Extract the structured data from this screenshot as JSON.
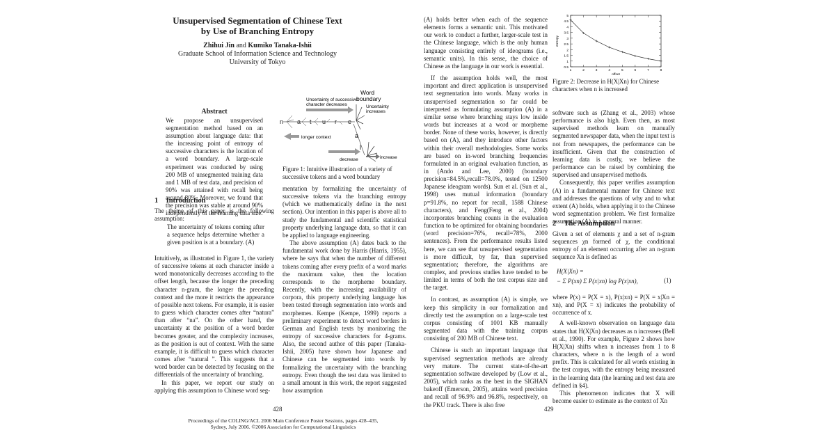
{
  "left": {
    "title": [
      "Unsupervised Segmentation of Chinese Text",
      "by Use of Branching Entropy"
    ],
    "author1": "Zhihui Jin",
    "and": "and",
    "author2": "Kumiko Tanaka-Ishii",
    "affiliation1": "Graduate School of Information Science and Technology",
    "affiliation2": "University of Tokyo",
    "abstract_title": "Abstract",
    "abstract_text": "We propose an unsupervised segmentation method based on an assumption about language data: that the increasing point of entropy of successive characters is the location of a word boundary. A large-scale experiment was conducted by using 200 MB of unsegmented training data and 1 MB of test data, and precision of 90% was attained with recall being around 80%. Moreover, we found that the precision was stable at around 90% independently of the learning data size.",
    "figure1": {
      "label_uncertainty_decreases": [
        "Uncertainty of successive",
        "character decreases"
      ],
      "label_word": "Word",
      "label_boundary": "boundary",
      "label_uncertainty_increases": [
        "Uncertainty",
        "increases"
      ],
      "chars": [
        "n",
        "a",
        "t",
        "u",
        "r",
        "e"
      ],
      "branch_chars": [
        "a",
        "l"
      ],
      "label_longer_context": "longer context",
      "label_decrease": "decrease",
      "label_increase": "increase",
      "caption": "Figure 1: Intuitive illustration of a variety of successive tokens and a word boundary"
    },
    "section1_num": "1",
    "section1_title": "Introduction",
    "intro_p1": "The theme of this paper is the following assumption:",
    "quote": "The uncertainty of tokens coming after a sequence helps determine whether a given position is at a boundary. (A)",
    "intro_p2": "Intuitively, as illustrated in Figure 1, the variety of successive tokens at each character inside a word monotonically decreases according to the offset length, because the longer the preceding character n-gram, the longer the preceding context and the more it restricts the appearance of possible next tokens. For example, it is easier to guess which character comes after “natura” than after “na”. On the other hand, the uncertainty at the position of a word border becomes greater, and the complexity increases, as the position is out of context. With the same example, it is difficult to guess which character comes after “natural ”. This suggests that a word border can be detected by focusing on the differentials of the uncertainty of branching.",
    "intro_p3": "In this paper, we report our study on applying this assumption to Chinese word seg-",
    "col2_p1": "mentation by formalizing the uncertainty of successive tokens via the branching entropy (which we mathematically define in the next section). Our intention in this paper is above all to study the fundamental and scientific statistical property underlying language data, so that it can be applied to language engineering.",
    "col2_p2": "The above assumption (A) dates back to the fundamental work done by Harris (Harris, 1955), where he says that when the number of different tokens coming after every prefix of a word marks the maximum value, then the location corresponds to the morpheme boundary. Recently, with the increasing availability of corpora, this property underlying language has been tested through segmentation into words and morphemes. Kempe (Kempe, 1999) reports a preliminary experiment to detect word borders in German and English texts by monitoring the entropy of successive characters for 4-grams. Also, the second author of this paper (Tanaka-Ishii, 2005) have shown how Japanese and Chinese can be segmented into words by formalizing the uncertainty with the branching entropy. Even though the test data was limited to a small amount in this work, the report suggested how assumption",
    "page_number": "428",
    "footer1": "Proceedings of the COLING/ACL 2006 Main Conference Poster Sessions, pages 428–435,",
    "footer2": "Sydney, July 2006. ©2006 Association for Computational Linguistics"
  },
  "right": {
    "col1_p1": "(A) holds better when each of the sequence elements forms a semantic unit. This motivated our work to conduct a further, larger-scale test in the Chinese language, which is the only human language consisting entirely of ideograms (i.e., semantic units). In this sense, the choice of Chinese as the language in our work is essential.",
    "col1_p2": "If the assumption holds well, the most important and direct application is unsupervised text segmentation into words. Many works in unsupervised segmentation so far could be interpreted as formulating assumption (A) in a similar sense where branching stays low inside words but increases at a word or morpheme border. None of these works, however, is directly based on (A), and they introduce other factors within their overall methodologies. Some works are based on in-word branching frequencies formulated in an original evaluation function, as in (Ando and Lee, 2000) (boundary precision=84.5%,recall=78.0%, tested on 12500 Japanese ideogram words). Sun et al. (Sun et al., 1998) uses mutual information (boundary p=91.8%, no report for recall, 1588 Chinese characters), and Feng(Feng et al., 2004) incorporates branching counts in the evaluation function to be optimized for obtaining boundaries (word precision=76%, recall=78%, 2000 sentences). From the performance results listed here, we can see that unsupervised segmentation is more difficult, by far, than supervised segmentation; therefore, the algorithms are complex, and previous studies have tended to be limited in terms of both the test corpus size and the target.",
    "col1_p3": "In contrast, as assumption (A) is simple, we keep this simplicity in our formalization and directly test the assumption on a large-scale test corpus consisting of 1001 KB manually segmented data with the training corpus consisting of 200 MB of Chinese text.",
    "col1_p4": "Chinese is such an important language that supervised segmentation methods are already very mature. The current state-of-the-art segmentation software developed by (Low et al., 2005), which ranks as the best in the SIGHAN bakeoff (Emerson, 2005), attains word precision and recall of 96.9% and 96.8%, respectively, on the PKU track. There is also free",
    "figure2_caption": "Figure 2: Decrease in H(X|Xn) for Chinese characters when n is increased",
    "col2_p1": "software such as (Zhang et al., 2003) whose performance is also high. Even then, as most supervised methods learn on manually segmented newspaper data, when the input text is not from newspapers, the performance can be insufficient. Given that the construction of learning data is costly, we believe the performance can be raised by combining the supervised and unsupervised methods.",
    "col2_p2": "Consequently, this paper verifies assumption (A) in a fundamental manner for Chinese text and addresses the questions of why and to what extent (A) holds, when applying it to the Chinese word segmentation problem. We first formalize assumption (A) in a general manner.",
    "section2_num": "2",
    "section2_title": "The Assumption",
    "assump_p1": "Given a set of elements χ and a set of n-gram sequences χn formed of χ, the conditional entropy of an element occurring after an n-gram sequence Xn is defined as",
    "eq_line1": "H(X|Xn) =",
    "eq_line2": "− Σ P(xn) Σ P(x|xn) log P(x|xn),",
    "eq_number": "(1)",
    "assump_p2": "where P(x) = P(X = x), P(x|xn) = P(X = x|Xn = xn), and P(X = x) indicates the probability of occurrence of x.",
    "assump_p3": "A well-known observation on language data states that H(X|Xn) decreases as n increases (Bell et al., 1990). For example, Figure 2 shows how H(X|Xn) shifts when n increases from 1 to 8 characters, where n is the length of a word prefix. This is calculated for all words existing in the test corpus, with the entropy being measured in the learning data (the learning and test data are defined in §4).",
    "assump_p4": "This phenomenon indicates that X will become easier to estimate as the context of Xn",
    "page_number": "429"
  },
  "chart_data": {
    "type": "line",
    "x": [
      1,
      2,
      3,
      4,
      5,
      6,
      7,
      8
    ],
    "series": [
      {
        "values": [
          4.6,
          3.45,
          2.75,
          2.2,
          1.8,
          1.45,
          1.2,
          1.0
        ]
      }
    ],
    "xlabel": "offset",
    "ylabel": "entropy",
    "xlim": [
      1,
      8
    ],
    "ylim": [
      0.5,
      5
    ],
    "xticks": [
      "1",
      "2",
      "3",
      "4",
      "5",
      "6",
      "7",
      "8"
    ],
    "yticks": [
      "0.5",
      "1",
      "1.5",
      "2",
      "2.5",
      "3",
      "3.5",
      "4",
      "4.5",
      "5"
    ],
    "grid": false,
    "legend": "none"
  }
}
